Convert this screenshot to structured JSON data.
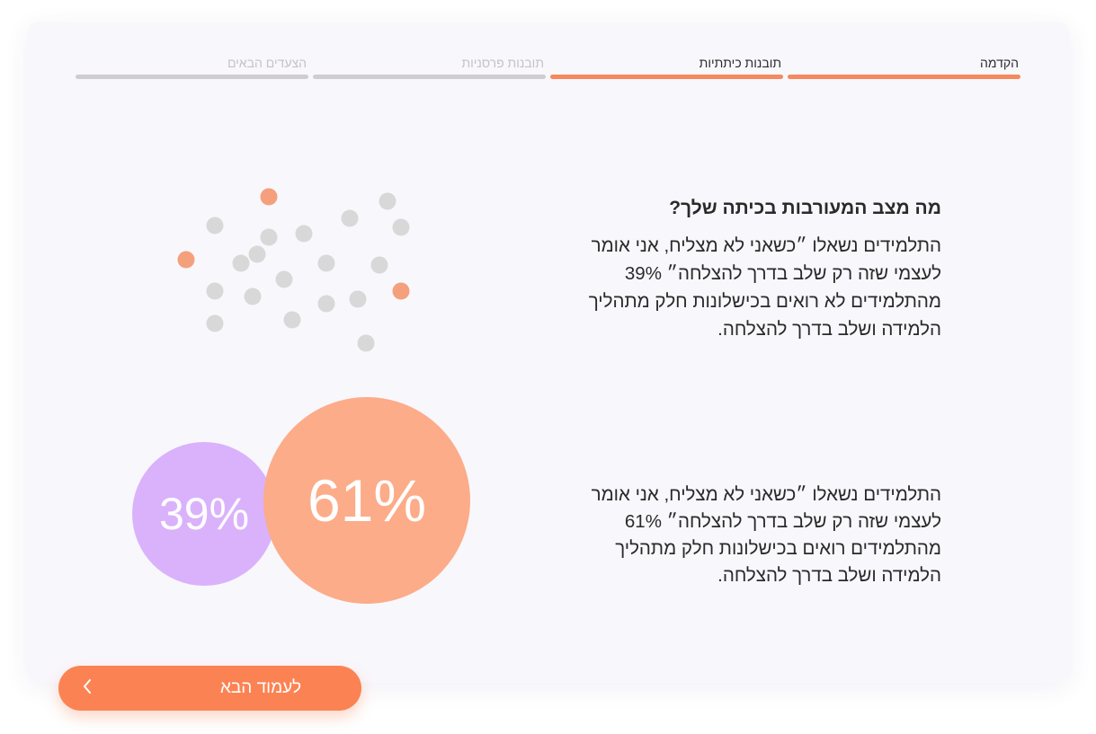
{
  "progress": {
    "steps": [
      {
        "label": "הקדמה",
        "state": "active"
      },
      {
        "label": "תובנות כיתתיות",
        "state": "active"
      },
      {
        "label": "תובנות פרסניות",
        "state": "inactive"
      },
      {
        "label": "הצעדים הבאים",
        "state": "inactive"
      }
    ]
  },
  "question": {
    "title": "מה מצב המעורבות בכיתה שלך?",
    "paragraph1": "התלמידים נשאלו ״כשאני לא מצליח, אני אומר לעצמי שזה רק שלב בדרך להצלחה״ 39% מהתלמידים לא רואים בכישלונות חלק מתהליך הלמידה ושלב בדרך להצלחה.",
    "paragraph2": "התלמידים נשאלו ״כשאני לא מצליח, אני אומר לעצמי שזה רק שלב בדרך להצלחה״ 61% מהתלמידים רואים בכישלונות חלק מתהליך הלמידה ושלב בדרך להצלחה."
  },
  "stats": {
    "negative_label": "39%",
    "negative_value": 39,
    "positive_label": "61%",
    "positive_value": 61
  },
  "colors": {
    "accent": "#fb8353",
    "highlight_dot": "#f5a07d",
    "neutral_dot": "#d8d8d8",
    "negative_bubble": "#dab2fb",
    "positive_bubble": "#fcac89"
  },
  "footer": {
    "next_label": "לעמוד הבא",
    "next_icon": "chevron-left-icon"
  }
}
